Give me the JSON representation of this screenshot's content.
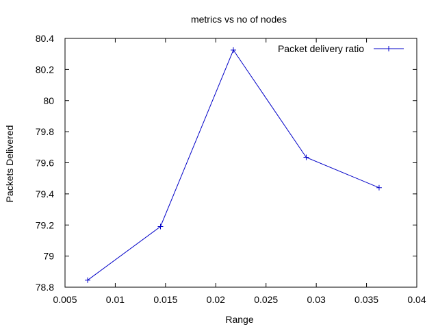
{
  "chart_data": {
    "type": "line",
    "title": "metrics vs no of nodes",
    "xlabel": "Range",
    "ylabel": "Packets Delivered",
    "xlim": [
      0.005,
      0.04
    ],
    "ylim": [
      78.8,
      80.4
    ],
    "xticks": [
      0.005,
      0.01,
      0.015,
      0.02,
      0.025,
      0.03,
      0.035,
      0.04
    ],
    "xtick_labels": [
      "0.005",
      "0.01",
      "0.015",
      "0.02",
      "0.025",
      "0.03",
      "0.035",
      "0.04"
    ],
    "yticks": [
      78.8,
      79,
      79.2,
      79.4,
      79.6,
      79.8,
      80,
      80.2,
      80.4
    ],
    "ytick_labels": [
      "78.8",
      "79",
      "79.2",
      "79.4",
      "79.6",
      "79.8",
      "80",
      "80.2",
      "80.4"
    ],
    "grid": false,
    "legend_position": "top-right",
    "series": [
      {
        "name": "Packet delivery ratio",
        "color": "#0000c8",
        "marker": "plus",
        "x": [
          0.00725,
          0.0145,
          0.02175,
          0.029,
          0.03625
        ],
        "y": [
          78.845,
          79.19,
          80.325,
          79.635,
          79.44
        ]
      }
    ]
  }
}
